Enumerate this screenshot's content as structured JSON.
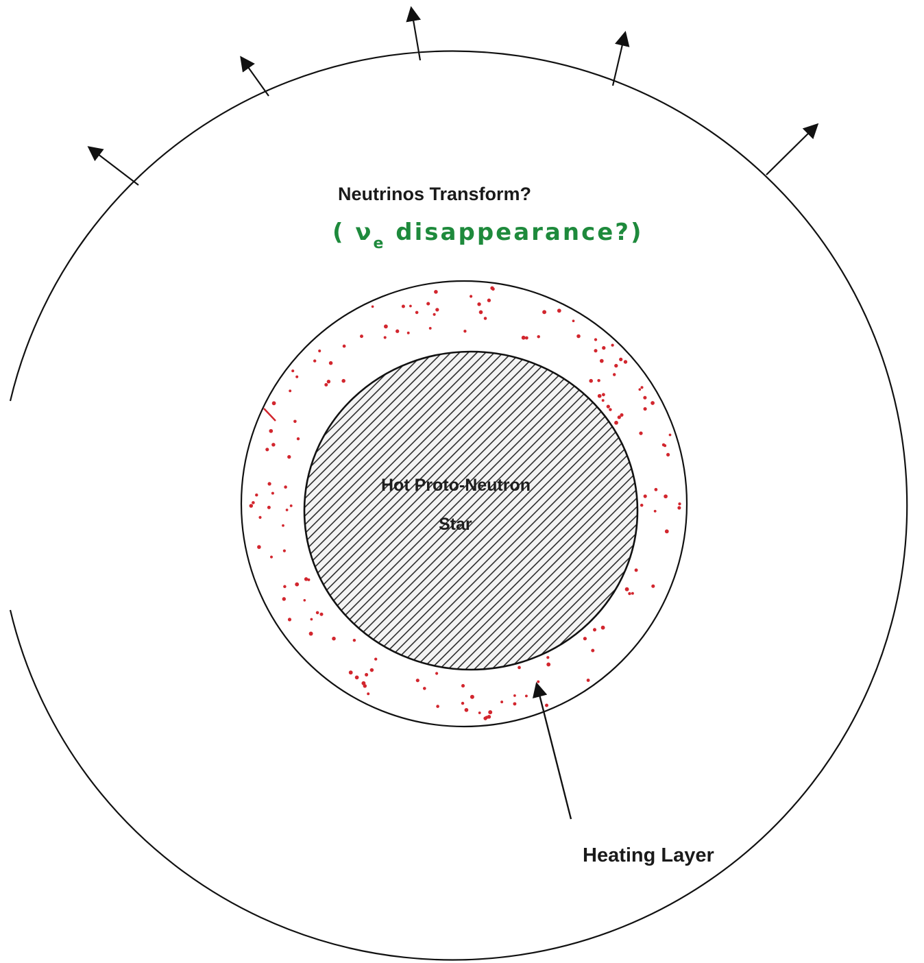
{
  "labels": {
    "title": "Neutrinos Transform?",
    "annotation_prefix": "( ν",
    "annotation_subscript": "e",
    "annotation_suffix": " disappearance?)",
    "core_line1": "Hot Proto-Neutron",
    "core_line2": "Star",
    "heating_layer": "Heating Layer"
  },
  "colors": {
    "line": "#111111",
    "annotation": "#1e8a3c",
    "dots": "#d2262e",
    "hatch": "#2b2b2b",
    "core_fill": "#f4f4f4"
  }
}
